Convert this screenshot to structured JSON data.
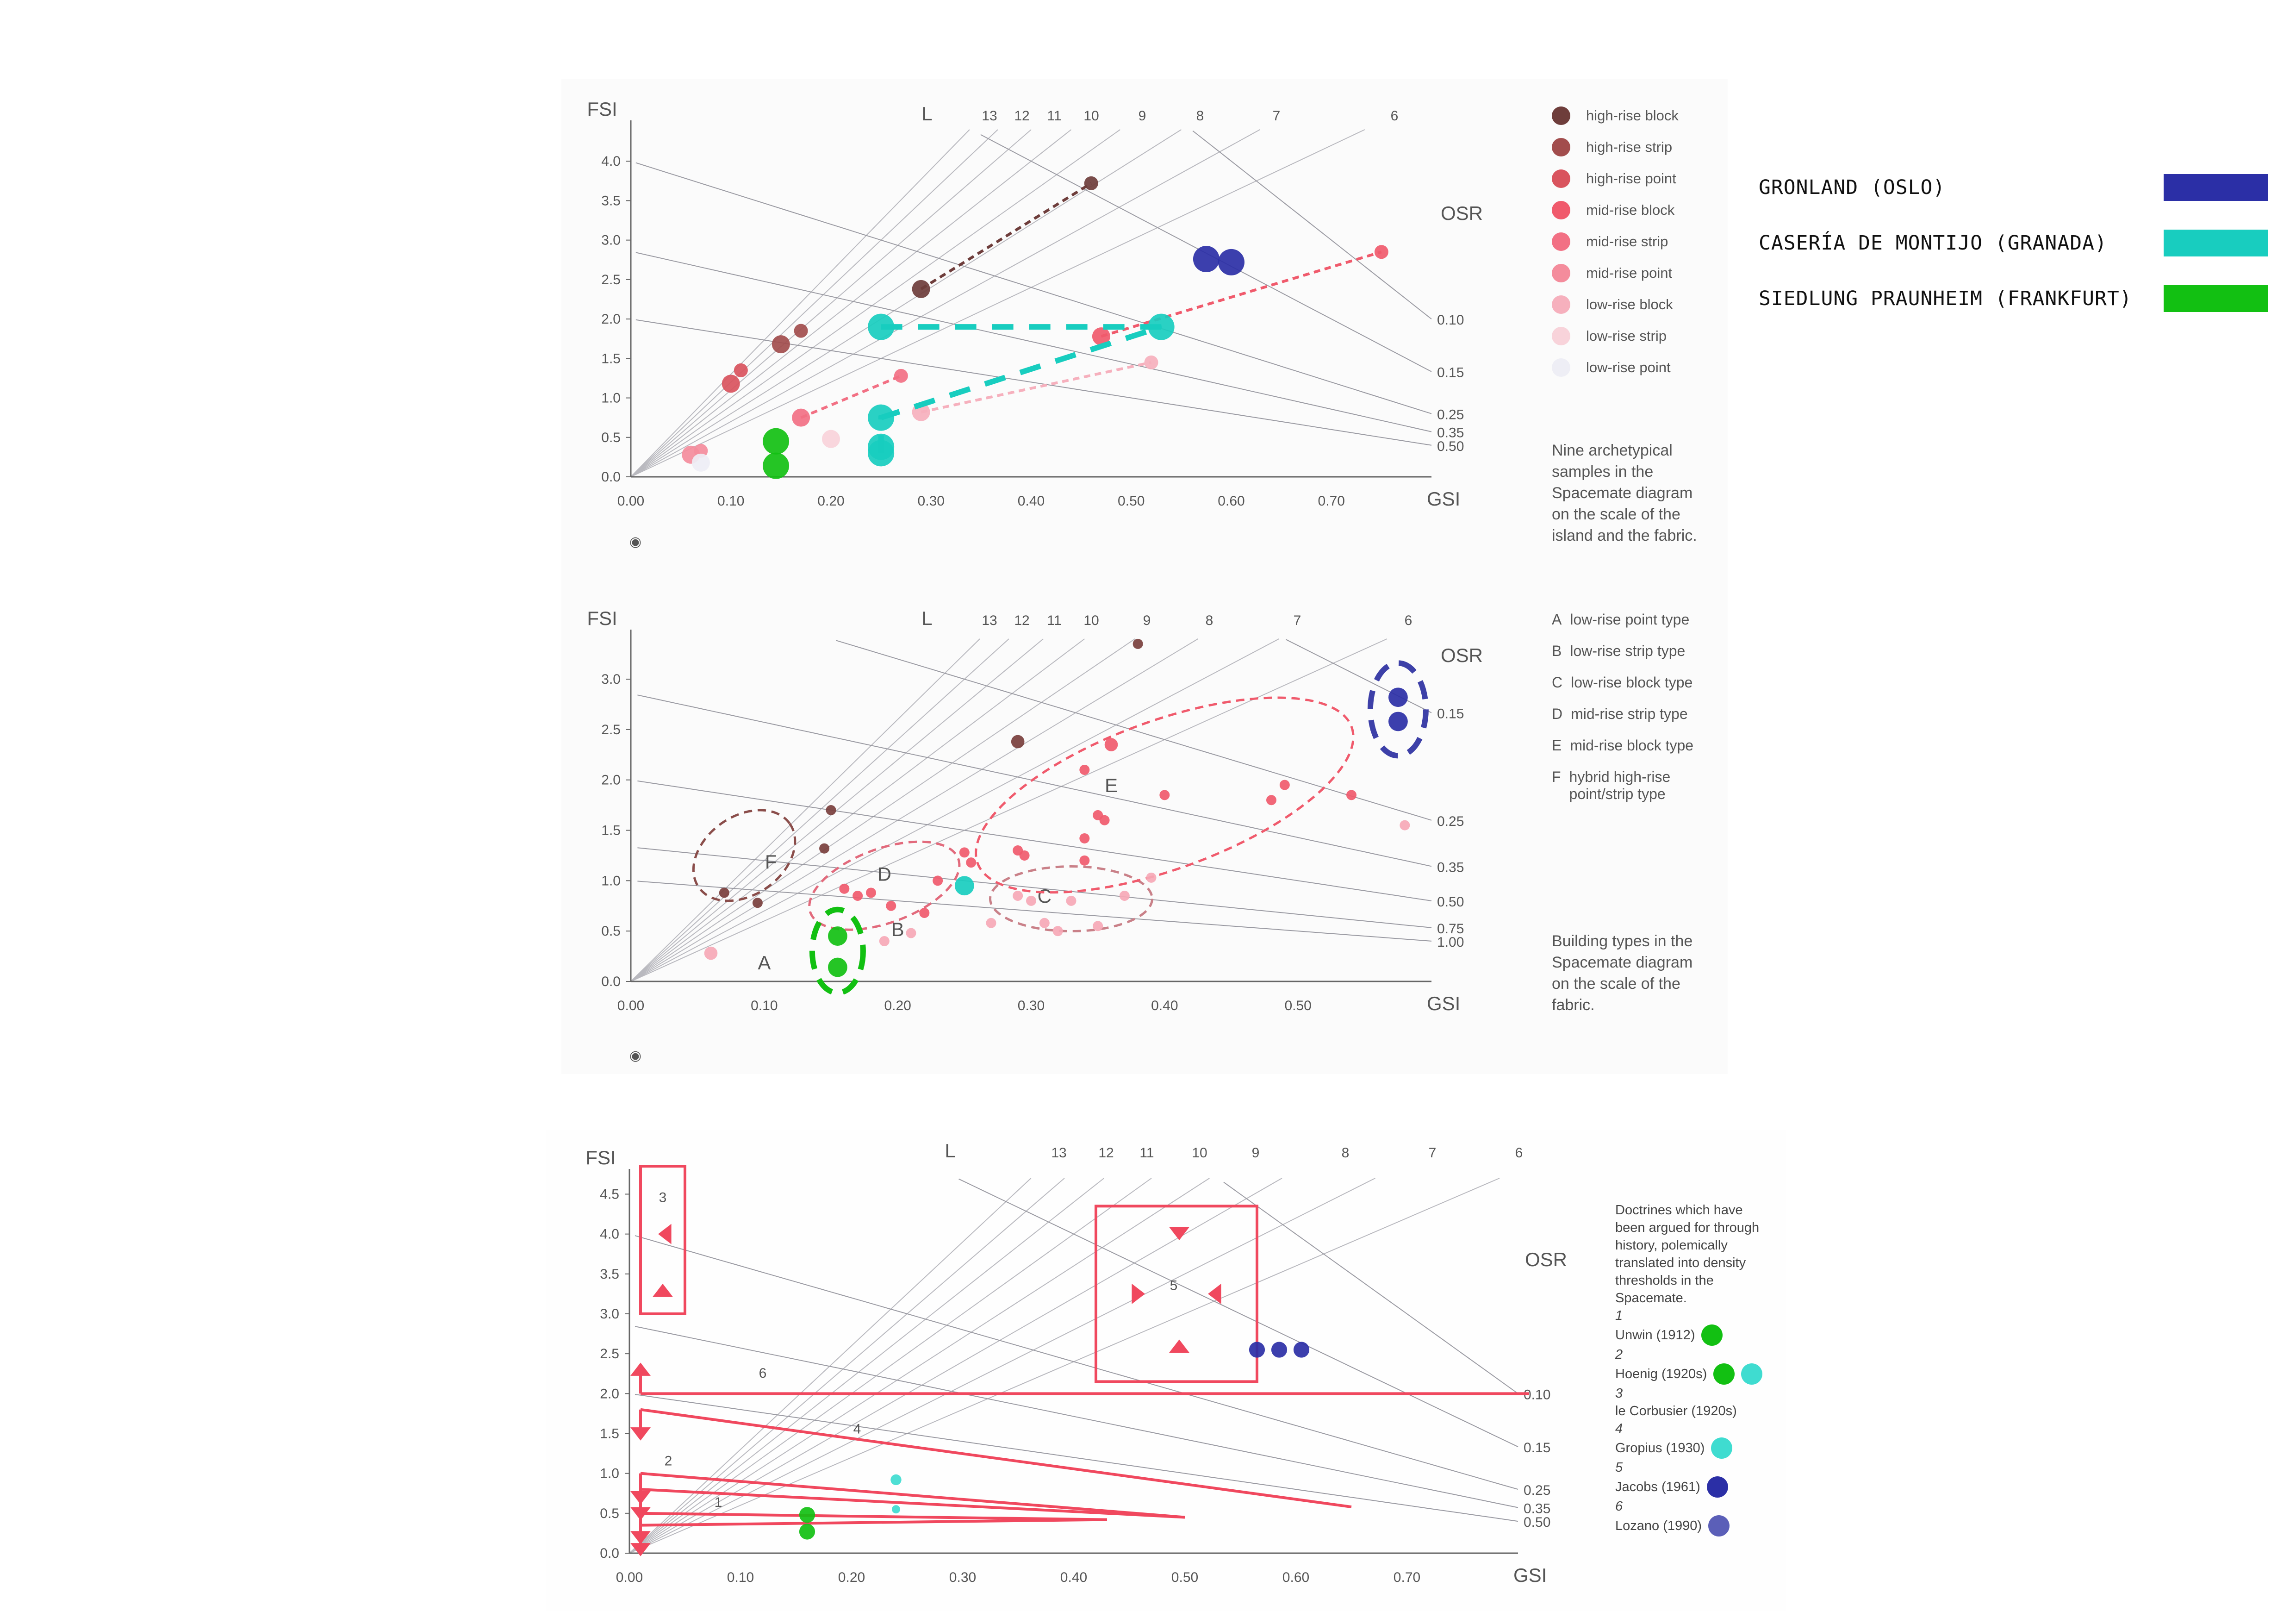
{
  "key": {
    "items": [
      {
        "label": "GRONLAND (OSLO)",
        "color": "#2b2fa6"
      },
      {
        "label": "CASERÍA DE MONTIJO (GRANADA)",
        "color": "#18cdbf"
      },
      {
        "label": "SIEDLUNG PRAUNHEIM (FRANKFURT)",
        "color": "#12c012"
      }
    ]
  },
  "panel1": {
    "legend": [
      {
        "label": "high-rise block",
        "color": "#6e3d3b"
      },
      {
        "label": "high-rise strip",
        "color": "#a24d4d"
      },
      {
        "label": "high-rise point",
        "color": "#d9545e"
      },
      {
        "label": "mid-rise block",
        "color": "#f05a6c"
      },
      {
        "label": "mid-rise strip",
        "color": "#f27084"
      },
      {
        "label": "mid-rise point",
        "color": "#f48c9c"
      },
      {
        "label": "low-rise block",
        "color": "#f6b0bd"
      },
      {
        "label": "low-rise strip",
        "color": "#f8d3da"
      },
      {
        "label": "low-rise point",
        "color": "#eeeef5"
      }
    ],
    "caption": "Nine archetypical samples in the Spacemate diagram on the scale of the island and the fabric."
  },
  "panel2": {
    "types": [
      {
        "letter": "A",
        "label": "low-rise point type"
      },
      {
        "letter": "B",
        "label": "low-rise strip type"
      },
      {
        "letter": "C",
        "label": "low-rise block type"
      },
      {
        "letter": "D",
        "label": "mid-rise strip type"
      },
      {
        "letter": "E",
        "label": "mid-rise block type"
      },
      {
        "letter": "F",
        "label": "hybrid high-rise point/strip type"
      }
    ],
    "caption": "Building types in the Spacemate diagram on the scale of the fabric."
  },
  "panel3": {
    "doctrines_intro": "Doctrines which have been argued for through history, polemically translated into density thresholds in the Spacemate.",
    "doctrines": [
      {
        "number": "1",
        "name": "Unwin (1912)",
        "dots": [
          "#12c012"
        ]
      },
      {
        "number": "2",
        "name": "Hoenig (1920s)",
        "dots": [
          "#12c012",
          "#3fdcd0"
        ]
      },
      {
        "number": "3",
        "name": "le Corbusier (1920s)",
        "dots": []
      },
      {
        "number": "4",
        "name": "Gropius (1930)",
        "dots": [
          "#3fdcd0"
        ]
      },
      {
        "number": "5",
        "name": "Jacobs (1961)",
        "dots": [
          "#2b2fa6"
        ]
      },
      {
        "number": "6",
        "name": "Lozano (1990)",
        "dots": [
          "#5b5fb8"
        ]
      }
    ]
  },
  "chart_data": [
    {
      "type": "scatter",
      "title": "",
      "xlabel": "GSI",
      "ylabel": "FSI",
      "xlim": [
        0,
        0.8
      ],
      "ylim": [
        0,
        4.4
      ],
      "x_ticks": [
        "0.00",
        "0.10",
        "0.20",
        "0.30",
        "0.40",
        "0.50",
        "0.60",
        "0.70"
      ],
      "y_ticks": [
        "0.0",
        "0.5",
        "1.0",
        "1.5",
        "2.0",
        "2.5",
        "3.0",
        "3.5",
        "4.0"
      ],
      "l_label": "L",
      "l_values": [
        "13",
        "12",
        "11",
        "10",
        "9",
        "8",
        "7",
        "6"
      ],
      "osr_label": "OSR",
      "osr_values": [
        "0.10",
        "0.15",
        "0.25",
        "0.35",
        "0.50"
      ],
      "series": [
        {
          "name": "high-rise block",
          "color": "#6e3d3b",
          "points": [
            [
              0.29,
              2.38
            ],
            [
              0.46,
              3.72
            ]
          ],
          "dashed_link": true
        },
        {
          "name": "high-rise strip",
          "color": "#a24d4d",
          "points": [
            [
              0.15,
              1.68
            ],
            [
              0.17,
              1.85
            ]
          ]
        },
        {
          "name": "high-rise point",
          "color": "#d9545e",
          "points": [
            [
              0.1,
              1.18
            ],
            [
              0.11,
              1.35
            ]
          ]
        },
        {
          "name": "mid-rise block",
          "color": "#f05a6c",
          "points": [
            [
              0.47,
              1.78
            ],
            [
              0.75,
              2.85
            ]
          ],
          "dashed_link": true
        },
        {
          "name": "mid-rise strip",
          "color": "#f27084",
          "points": [
            [
              0.17,
              0.75
            ],
            [
              0.27,
              1.28
            ]
          ],
          "dashed_link": true
        },
        {
          "name": "mid-rise point",
          "color": "#f48c9c",
          "points": [
            [
              0.06,
              0.28
            ],
            [
              0.07,
              0.33
            ]
          ]
        },
        {
          "name": "low-rise block",
          "color": "#f6b0bd",
          "points": [
            [
              0.29,
              0.82
            ],
            [
              0.52,
              1.45
            ]
          ],
          "dashed_link": true
        },
        {
          "name": "low-rise strip",
          "color": "#f8d3da",
          "points": [
            [
              0.2,
              0.48
            ]
          ]
        },
        {
          "name": "low-rise point",
          "color": "#eeeef5",
          "points": [
            [
              0.07,
              0.18
            ]
          ]
        },
        {
          "name": "GRONLAND (OSLO)",
          "color": "#2b2fa6",
          "points": [
            [
              0.575,
              2.76
            ],
            [
              0.6,
              2.72
            ]
          ]
        },
        {
          "name": "CASERÍA DE MONTIJO (GRANADA)",
          "color": "#18cdbf",
          "points": [
            [
              0.25,
              1.9
            ],
            [
              0.53,
              1.9
            ],
            [
              0.25,
              0.75
            ],
            [
              0.25,
              0.38
            ],
            [
              0.25,
              0.3
            ]
          ],
          "dashed_link": true
        },
        {
          "name": "SIEDLUNG PRAUNHEIM (FRANKFURT)",
          "color": "#12c012",
          "points": [
            [
              0.145,
              0.45
            ],
            [
              0.145,
              0.14
            ]
          ]
        }
      ]
    },
    {
      "type": "scatter",
      "title": "",
      "xlabel": "GSI",
      "ylabel": "FSI",
      "xlim": [
        0,
        0.6
      ],
      "ylim": [
        0,
        3.4
      ],
      "x_ticks": [
        "0.00",
        "0.10",
        "0.20",
        "0.30",
        "0.40",
        "0.50"
      ],
      "y_ticks": [
        "0.0",
        "0.5",
        "1.0",
        "1.5",
        "2.0",
        "2.5",
        "3.0"
      ],
      "l_label": "L",
      "l_values": [
        "13",
        "12",
        "11",
        "10",
        "9",
        "8",
        "7",
        "6"
      ],
      "osr_label": "OSR",
      "osr_values": [
        "0.15",
        "0.25",
        "0.35",
        "0.50",
        "0.75",
        "1.00"
      ],
      "zones": [
        "A",
        "B",
        "C",
        "D",
        "E",
        "F"
      ],
      "series": [
        {
          "name": "high-rise",
          "color": "#7a3f3d",
          "points": [
            [
              0.29,
              2.38
            ],
            [
              0.38,
              3.35
            ],
            [
              0.15,
              1.7
            ],
            [
              0.145,
              1.32
            ],
            [
              0.07,
              0.88
            ],
            [
              0.095,
              0.78
            ]
          ]
        },
        {
          "name": "mid-rise",
          "color": "#f05a6c",
          "points": [
            [
              0.36,
              2.35
            ],
            [
              0.34,
              2.1
            ],
            [
              0.4,
              1.85
            ],
            [
              0.35,
              1.65
            ],
            [
              0.355,
              1.6
            ],
            [
              0.48,
              1.8
            ],
            [
              0.49,
              1.95
            ],
            [
              0.54,
              1.85
            ],
            [
              0.34,
              1.42
            ],
            [
              0.29,
              1.3
            ],
            [
              0.295,
              1.25
            ],
            [
              0.25,
              1.28
            ],
            [
              0.255,
              1.18
            ],
            [
              0.34,
              1.2
            ],
            [
              0.23,
              1.0
            ],
            [
              0.16,
              0.92
            ],
            [
              0.17,
              0.85
            ],
            [
              0.18,
              0.88
            ],
            [
              0.195,
              0.75
            ],
            [
              0.22,
              0.68
            ]
          ]
        },
        {
          "name": "low-rise",
          "color": "#f6a8b6",
          "points": [
            [
              0.06,
              0.28
            ],
            [
              0.58,
              1.55
            ],
            [
              0.39,
              1.03
            ],
            [
              0.37,
              0.85
            ],
            [
              0.33,
              0.8
            ],
            [
              0.29,
              0.85
            ],
            [
              0.3,
              0.8
            ],
            [
              0.31,
              0.58
            ],
            [
              0.27,
              0.58
            ],
            [
              0.32,
              0.5
            ],
            [
              0.35,
              0.55
            ],
            [
              0.21,
              0.48
            ],
            [
              0.19,
              0.4
            ]
          ]
        },
        {
          "name": "GRONLAND (OSLO)",
          "color": "#2b2fa6",
          "points": [
            [
              0.575,
              2.82
            ],
            [
              0.575,
              2.58
            ]
          ]
        },
        {
          "name": "CASERÍA DE MONTIJO (GRANADA)",
          "color": "#18cdbf",
          "points": [
            [
              0.25,
              0.95
            ]
          ]
        },
        {
          "name": "SIEDLUNG PRAUNHEIM (FRANKFURT)",
          "color": "#12c012",
          "points": [
            [
              0.155,
              0.45
            ],
            [
              0.155,
              0.14
            ]
          ]
        }
      ]
    },
    {
      "type": "scatter",
      "title": "",
      "xlabel": "GSI",
      "ylabel": "FSI",
      "xlim": [
        0,
        0.8
      ],
      "ylim": [
        0,
        4.7
      ],
      "x_ticks": [
        "0.00",
        "0.10",
        "0.20",
        "0.30",
        "0.40",
        "0.50",
        "0.60",
        "0.70"
      ],
      "y_ticks": [
        "0.0",
        "0.5",
        "1.0",
        "1.5",
        "2.0",
        "2.5",
        "3.0",
        "3.5",
        "4.0",
        "4.5"
      ],
      "l_label": "L",
      "l_values": [
        "13",
        "12",
        "11",
        "10",
        "9",
        "8",
        "7",
        "6"
      ],
      "osr_label": "OSR",
      "osr_values": [
        "0.10",
        "0.15",
        "0.25",
        "0.35",
        "0.50"
      ],
      "doctrine_labels": [
        "1",
        "2",
        "3",
        "4",
        "5",
        "6"
      ],
      "series": [
        {
          "name": "Unwin / Hoenig",
          "color": "#12c012",
          "points": [
            [
              0.16,
              0.48
            ],
            [
              0.16,
              0.27
            ]
          ]
        },
        {
          "name": "Hoenig / Gropius",
          "color": "#3fdcd0",
          "points": [
            [
              0.24,
              0.92
            ],
            [
              0.24,
              0.55
            ]
          ]
        },
        {
          "name": "Jacobs (1961)",
          "color": "#2b2fa6",
          "points": [
            [
              0.565,
              2.55
            ],
            [
              0.585,
              2.55
            ],
            [
              0.605,
              2.55
            ]
          ]
        }
      ]
    }
  ]
}
